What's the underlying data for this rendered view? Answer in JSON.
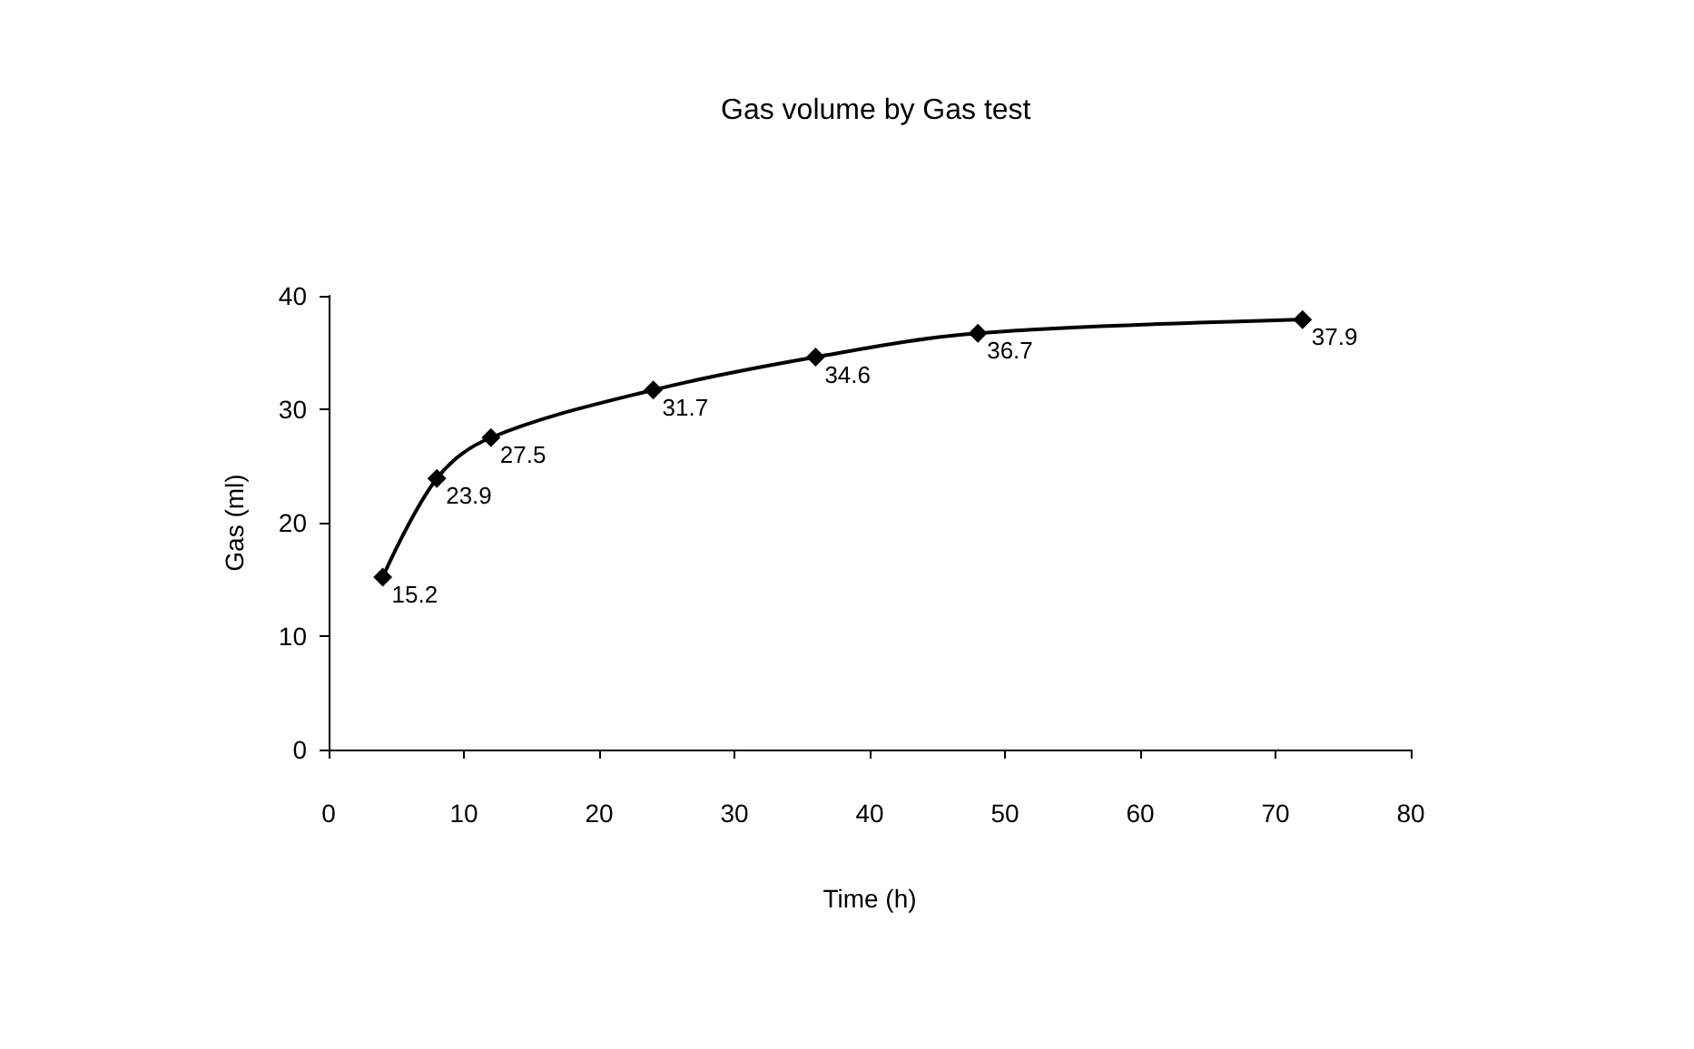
{
  "chart_data": {
    "type": "line",
    "title": "Gas volume by Gas test",
    "xlabel": "Time (h)",
    "ylabel": "Gas (ml)",
    "x": [
      4,
      8,
      12,
      24,
      36,
      48,
      72
    ],
    "series": [
      {
        "color": "#000000",
        "values": [
          15.2,
          23.9,
          27.5,
          31.7,
          34.6,
          36.7,
          37.9
        ]
      }
    ],
    "xlim": [
      0,
      80
    ],
    "xticks": [
      0,
      10,
      20,
      30,
      40,
      50,
      60,
      70,
      80
    ],
    "ylim": [
      0,
      40
    ],
    "yticks": [
      0,
      10,
      20,
      30,
      40
    ],
    "data_labels": true,
    "marker": "diamond",
    "line_style": "solid",
    "grid": false
  }
}
